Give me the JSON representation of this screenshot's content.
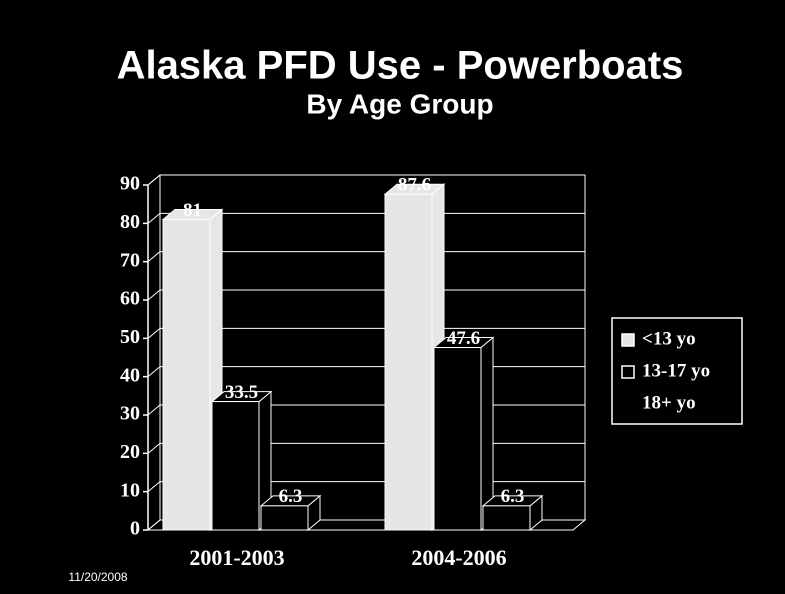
{
  "chart_data": {
    "type": "bar3d",
    "title": "Alaska PFD Use - Powerboats",
    "subtitle": "By Age Group",
    "footer": "11/20/2008",
    "categories": [
      "2001-2003",
      "2004-2006"
    ],
    "series": [
      {
        "name": "<13  yo",
        "color": "#e6e6e6",
        "values": [
          81,
          87.6
        ]
      },
      {
        "name": "13-17 yo",
        "color": "#000000",
        "values": [
          33.5,
          47.6
        ]
      },
      {
        "name": "18+ yo",
        "color": "#000000",
        "values": [
          6.3,
          6.3
        ]
      }
    ],
    "ylim": [
      0,
      90
    ],
    "yticks": [
      0,
      10,
      20,
      30,
      40,
      50,
      60,
      70,
      80,
      90
    ],
    "grid": true,
    "legend": "right"
  }
}
